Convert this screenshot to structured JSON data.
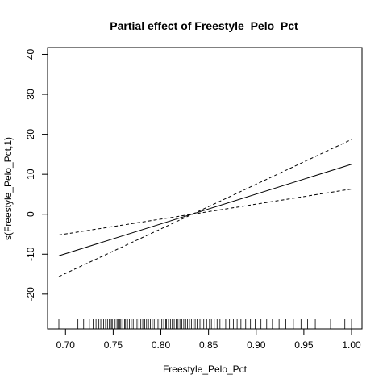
{
  "chart_data": {
    "type": "line",
    "title": "Partial effect of Freestyle_Pelo_Pct",
    "xlabel": "Freestyle_Pelo_Pct",
    "ylabel": "s(Freestyle_Pelo_Pct,1)",
    "xlim": [
      0.693,
      1.0
    ],
    "ylim": [
      -27.5,
      40.5
    ],
    "x_ticks": [
      0.7,
      0.75,
      0.8,
      0.85,
      0.9,
      0.95,
      1.0
    ],
    "x_tick_labels": [
      "0.70",
      "0.75",
      "0.80",
      "0.85",
      "0.90",
      "0.95",
      "1.00"
    ],
    "y_ticks": [
      -20,
      -10,
      0,
      10,
      20,
      30,
      40
    ],
    "y_tick_labels": [
      "-20",
      "-10",
      "0",
      "10",
      "20",
      "30",
      "40"
    ],
    "grid": false,
    "series": [
      {
        "role": "fit",
        "style": "solid",
        "x": [
          0.693,
          1.0
        ],
        "y": [
          -10.4,
          12.5
        ]
      },
      {
        "role": "upper-band",
        "style": "dashed",
        "x": [
          0.693,
          0.833,
          1.0
        ],
        "y": [
          -5.2,
          0.0,
          18.7
        ]
      },
      {
        "role": "lower-band",
        "style": "dashed",
        "x": [
          0.693,
          0.833,
          1.0
        ],
        "y": [
          -15.6,
          0.0,
          6.3
        ]
      }
    ],
    "rug": [
      0.693,
      0.713,
      0.719,
      0.725,
      0.729,
      0.732,
      0.735,
      0.737,
      0.74,
      0.742,
      0.744,
      0.746,
      0.748,
      0.749,
      0.751,
      0.752,
      0.754,
      0.755,
      0.757,
      0.758,
      0.76,
      0.762,
      0.763,
      0.765,
      0.767,
      0.769,
      0.771,
      0.773,
      0.775,
      0.777,
      0.779,
      0.781,
      0.783,
      0.785,
      0.787,
      0.789,
      0.791,
      0.793,
      0.795,
      0.797,
      0.799,
      0.801,
      0.803,
      0.805,
      0.806,
      0.808,
      0.81,
      0.812,
      0.814,
      0.816,
      0.818,
      0.82,
      0.822,
      0.824,
      0.826,
      0.828,
      0.83,
      0.832,
      0.834,
      0.836,
      0.838,
      0.841,
      0.843,
      0.845,
      0.848,
      0.851,
      0.853,
      0.856,
      0.859,
      0.862,
      0.865,
      0.868,
      0.872,
      0.876,
      0.88,
      0.884,
      0.889,
      0.894,
      0.899,
      0.905,
      0.911,
      0.917,
      0.924,
      0.931,
      0.939,
      0.947,
      0.954,
      0.962,
      0.978,
      0.993,
      1.0
    ]
  }
}
